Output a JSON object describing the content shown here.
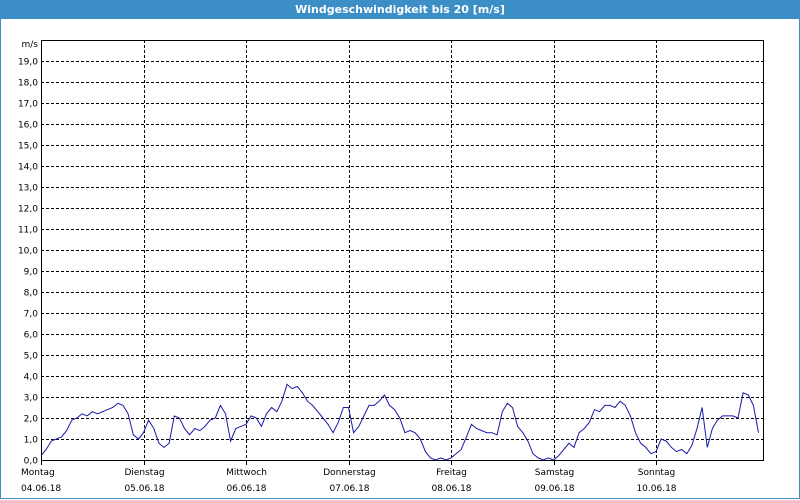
{
  "window": {
    "title": "Windgeschwindigkeit bis 20 [m/s]"
  },
  "colors": {
    "titlebar": "#3b8fc6",
    "line": "#1a1aa8",
    "grid": "#000000"
  },
  "chart_data": {
    "type": "line",
    "title": "Windgeschwindigkeit bis 20 [m/s]",
    "ylabel": "m/s",
    "xlabel": "",
    "ylim": [
      0,
      20
    ],
    "yticks": [
      "0,0",
      "1,0",
      "2,0",
      "3,0",
      "4,0",
      "5,0",
      "6,0",
      "7,0",
      "8,0",
      "9,0",
      "10,0",
      "11,0",
      "12,0",
      "13,0",
      "14,0",
      "15,0",
      "16,0",
      "17,0",
      "18,0",
      "19,0"
    ],
    "xlim": [
      0,
      7
    ],
    "xticks": [
      {
        "day": "Montag",
        "date": "04.06.18"
      },
      {
        "day": "Dienstag",
        "date": "05.06.18"
      },
      {
        "day": "Mittwoch",
        "date": "06.06.18"
      },
      {
        "day": "Donnerstag",
        "date": "07.06.18"
      },
      {
        "day": "Freitag",
        "date": "08.06.18"
      },
      {
        "day": "Samstag",
        "date": "09.06.18"
      },
      {
        "day": "Sonntag",
        "date": "10.06.18"
      }
    ],
    "grid": true,
    "series": [
      {
        "x": [
          0,
          0.05,
          0.1,
          0.15,
          0.2,
          0.25,
          0.3,
          0.35,
          0.4,
          0.45,
          0.5,
          0.55,
          0.6,
          0.65,
          0.7,
          0.75,
          0.8,
          0.85,
          0.9,
          0.95,
          1.0,
          1.05,
          1.1,
          1.15,
          1.2,
          1.25,
          1.3,
          1.35,
          1.4,
          1.45,
          1.5,
          1.55,
          1.6,
          1.65,
          1.7,
          1.75,
          1.8,
          1.85,
          1.9,
          1.95,
          2.0,
          2.05,
          2.1,
          2.15,
          2.2,
          2.25,
          2.3,
          2.35,
          2.4,
          2.45,
          2.5,
          2.55,
          2.6,
          2.65,
          2.7,
          2.75,
          2.8,
          2.85,
          2.9,
          2.95,
          3.0,
          3.05,
          3.1,
          3.15,
          3.2,
          3.25,
          3.3,
          3.35,
          3.4,
          3.45,
          3.5,
          3.55,
          3.6,
          3.65,
          3.7,
          3.75,
          3.8,
          3.85,
          3.9,
          3.95,
          4.0,
          4.05,
          4.1,
          4.15,
          4.2,
          4.25,
          4.3,
          4.35,
          4.4,
          4.45,
          4.5,
          4.55,
          4.6,
          4.65,
          4.7,
          4.75,
          4.8,
          4.85,
          4.9,
          4.95,
          5.0,
          5.05,
          5.1,
          5.15,
          5.2,
          5.25,
          5.3,
          5.35,
          5.4,
          5.45,
          5.5,
          5.55,
          5.6,
          5.65,
          5.7,
          5.75,
          5.8,
          5.85,
          5.9,
          5.95,
          6.0,
          6.05,
          6.1,
          6.15,
          6.2,
          6.25,
          6.3,
          6.35,
          6.4,
          6.45,
          6.5,
          6.55,
          6.6,
          6.65,
          6.7,
          6.75,
          6.8,
          6.85,
          6.9,
          6.95,
          7.0
        ],
        "y": [
          0.2,
          0.5,
          0.9,
          1.0,
          1.1,
          1.4,
          1.9,
          2.0,
          2.2,
          2.1,
          2.3,
          2.2,
          2.3,
          2.4,
          2.5,
          2.7,
          2.6,
          2.2,
          1.2,
          1.0,
          1.3,
          1.9,
          1.5,
          0.8,
          0.6,
          0.8,
          2.1,
          2.0,
          1.5,
          1.2,
          1.5,
          1.4,
          1.6,
          1.9,
          2.0,
          2.6,
          2.2,
          0.9,
          1.5,
          1.6,
          1.7,
          2.1,
          2.0,
          1.6,
          2.2,
          2.5,
          2.3,
          2.8,
          3.6,
          3.4,
          3.5,
          3.2,
          2.8,
          2.6,
          2.3,
          2.0,
          1.7,
          1.3,
          1.8,
          2.5,
          2.5,
          1.3,
          1.6,
          2.1,
          2.6,
          2.6,
          2.8,
          3.1,
          2.6,
          2.4,
          2.0,
          1.3,
          1.4,
          1.3,
          1.0,
          0.4,
          0.1,
          0.0,
          0.1,
          0.0,
          0.1,
          0.3,
          0.5,
          1.1,
          1.7,
          1.5,
          1.4,
          1.3,
          1.3,
          1.2,
          2.3,
          2.7,
          2.5,
          1.6,
          1.3,
          0.9,
          0.3,
          0.1,
          0.0,
          0.1,
          0.0,
          0.2,
          0.5,
          0.8,
          0.6,
          1.3,
          1.5,
          1.8,
          2.4,
          2.3,
          2.6,
          2.6,
          2.5,
          2.8,
          2.6,
          2.1,
          1.3,
          0.8,
          0.6,
          0.3,
          0.4,
          1.0,
          0.9,
          0.6,
          0.4,
          0.5,
          0.3,
          0.7,
          1.5,
          2.5,
          0.6,
          1.5,
          1.9,
          2.1,
          2.1,
          2.1,
          2.0,
          3.2,
          3.1,
          2.6,
          1.3
        ]
      }
    ]
  }
}
